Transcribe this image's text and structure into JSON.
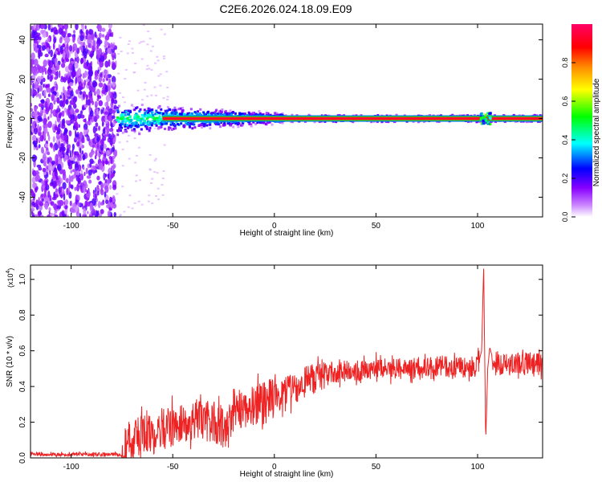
{
  "title": "C2E6.2026.024.18.09.E09",
  "chart_data": [
    {
      "type": "heatmap",
      "xlabel": "Height of straight line (km)",
      "ylabel": "Frequency (Hz)",
      "xlim": [
        -120,
        132
      ],
      "ylim": [
        -50,
        48
      ],
      "xticks": [
        -100,
        -50,
        0,
        50,
        100
      ],
      "yticks": [
        -40,
        -20,
        0,
        20,
        40
      ],
      "colorbar": {
        "label": "Normalized spectral amplitude",
        "range": [
          0,
          1
        ],
        "ticks": [
          0.0,
          0.2,
          0.4,
          0.6,
          0.8
        ],
        "colors": [
          "#ffffff",
          "#8800ff",
          "#0000ff",
          "#00ffff",
          "#00ff00",
          "#ffff00",
          "#ff8800",
          "#ff0000",
          "#ff0066"
        ]
      },
      "regions": [
        {
          "name": "noise",
          "x": [
            -120,
            -78
          ],
          "amplitude": 0.15
        },
        {
          "name": "band-onset",
          "x": [
            -78,
            5
          ],
          "freq": 0,
          "amplitude": 0.35
        },
        {
          "name": "carrier",
          "x": [
            -55,
            132
          ],
          "freq": 0,
          "amplitude": 0.95
        }
      ]
    },
    {
      "type": "line",
      "xlabel": "Height of straight line (km)",
      "ylabel": "SNR (10 * v/v)",
      "scale_label": "(x10",
      "scale_exp": "4",
      "scale_close": ")",
      "xlim": [
        -120,
        132
      ],
      "ylim": [
        0,
        1.08
      ],
      "xticks": [
        -100,
        -50,
        0,
        50,
        100
      ],
      "yticks": [
        0.0,
        0.2,
        0.4,
        0.6,
        0.8,
        1.0
      ],
      "color": "#ee2222",
      "series": [
        {
          "x": [
            -120,
            -75,
            -74,
            -60,
            -50,
            -40,
            -30,
            -22,
            -20,
            -10,
            -5,
            0,
            5,
            10,
            15,
            20,
            25,
            30,
            40,
            50,
            60,
            70,
            80,
            90,
            100,
            102,
            103,
            104,
            105,
            106,
            108,
            110,
            120,
            132
          ],
          "values": [
            0.02,
            0.02,
            0.08,
            0.14,
            0.18,
            0.21,
            0.2,
            0.16,
            0.28,
            0.29,
            0.31,
            0.33,
            0.36,
            0.39,
            0.42,
            0.45,
            0.47,
            0.48,
            0.49,
            0.5,
            0.5,
            0.5,
            0.51,
            0.51,
            0.51,
            0.6,
            1.08,
            0.09,
            0.5,
            0.62,
            0.53,
            0.52,
            0.53,
            0.53
          ]
        }
      ]
    }
  ]
}
